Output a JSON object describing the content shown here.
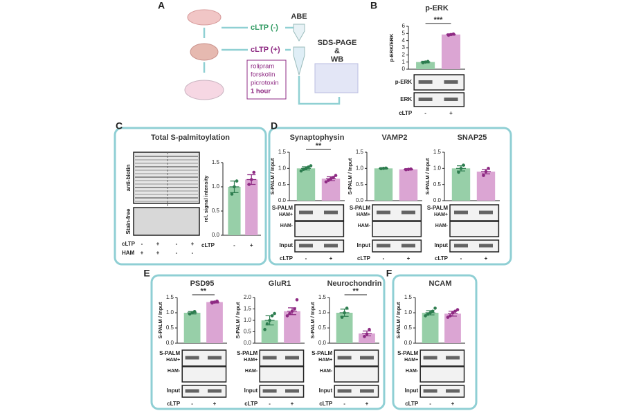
{
  "figure": {
    "panel_a": {
      "letter": "A",
      "minus": "cLTP (-)",
      "plus": "cLTP (+)",
      "abe": "ABE",
      "wb": [
        "SDS-PAGE",
        "&",
        "WB"
      ],
      "treatment": [
        "rolipram",
        "forskolin",
        "picrotoxin",
        "1 hour"
      ]
    },
    "panel_b": {
      "letter": "B"
    },
    "panel_c": {
      "letter": "C",
      "title": "Total S-palmitoylation",
      "blot_labels": [
        "anti-biotin",
        "Stain-free"
      ],
      "rows": [
        {
          "name": "cLTP",
          "signs": [
            "-",
            "+",
            "-",
            "+"
          ]
        },
        {
          "name": "HAM",
          "signs": [
            "+",
            "+",
            "-",
            "-"
          ]
        }
      ]
    },
    "panel_d": {
      "letter": "D"
    },
    "panel_e": {
      "letter": "E"
    },
    "panel_f": {
      "letter": "F"
    }
  },
  "chart_data": [
    {
      "type": "bar",
      "title": "p-ERK",
      "y_label": "p-ERK/ERK",
      "x_label": "cLTP",
      "categories": [
        "-",
        "+"
      ],
      "values": [
        1.0,
        4.85
      ],
      "errors": [
        0.12,
        0.1
      ],
      "points": [
        [
          0.9,
          1.0,
          1.08
        ],
        [
          4.75,
          4.85,
          4.92
        ]
      ],
      "colors": [
        "#97cfa8",
        "#dba5d3"
      ],
      "point_colors": [
        "#2d7d4f",
        "#8e2a83"
      ],
      "ylim": [
        0,
        6
      ],
      "yticks": [
        0,
        1,
        2,
        3,
        4,
        5,
        6
      ],
      "significance": "***",
      "blot_rows": [
        "p-ERK",
        "ERK"
      ]
    },
    {
      "type": "bar",
      "y_label": "rel. signal intensity",
      "x_label": "cLTP",
      "categories": [
        "-",
        "+"
      ],
      "values": [
        1.0,
        1.15
      ],
      "errors": [
        0.12,
        0.1
      ],
      "points": [
        [
          0.85,
          1.0,
          1.12
        ],
        [
          1.05,
          1.15,
          1.3
        ]
      ],
      "colors": [
        "#97cfa8",
        "#dba5d3"
      ],
      "point_colors": [
        "#2d7d4f",
        "#8e2a83"
      ],
      "ylim": [
        0,
        1.5
      ],
      "yticks": [
        {
          "value": 0,
          "label": "0.0"
        },
        0.5,
        {
          "value": 1,
          "label": "1.0"
        },
        1.5
      ]
    },
    {
      "type": "bar",
      "title": "Synaptophysin",
      "y_label": "S-PALM / Input",
      "x_label": "cLTP",
      "categories": [
        "-",
        "+"
      ],
      "values": [
        1.0,
        0.68
      ],
      "errors": [
        0.05,
        0.06
      ],
      "points": [
        [
          0.92,
          0.97,
          1.0,
          1.04,
          1.08
        ],
        [
          0.58,
          0.63,
          0.68,
          0.72,
          0.78
        ]
      ],
      "colors": [
        "#97cfa8",
        "#dba5d3"
      ],
      "point_colors": [
        "#2d7d4f",
        "#8e2a83"
      ],
      "ylim": [
        0,
        1.5
      ],
      "yticks": [
        {
          "value": 0,
          "label": "0.0"
        },
        0.5,
        {
          "value": 1,
          "label": "1.0"
        },
        1.5
      ],
      "significance": "**",
      "blot_rows": [
        "S-PALM",
        "HAM+",
        "HAM-",
        "Input"
      ]
    },
    {
      "type": "bar",
      "title": "VAMP2",
      "y_label": "S-PALM / Input",
      "x_label": "cLTP",
      "categories": [
        "-",
        "+"
      ],
      "values": [
        1.0,
        0.97
      ],
      "errors": [
        0.02,
        0.02
      ],
      "points": [
        [
          0.99,
          1.0,
          1.01
        ],
        [
          0.96,
          0.97,
          0.98
        ]
      ],
      "colors": [
        "#97cfa8",
        "#dba5d3"
      ],
      "point_colors": [
        "#2d7d4f",
        "#8e2a83"
      ],
      "ylim": [
        0,
        1.5
      ],
      "yticks": [
        {
          "value": 0,
          "label": "0.0"
        },
        0.5,
        {
          "value": 1,
          "label": "1.0"
        },
        1.5
      ],
      "blot_rows": [
        "S-PALM",
        "HAM+",
        "HAM-",
        "Input"
      ]
    },
    {
      "type": "bar",
      "title": "SNAP25",
      "y_label": "S-PALM / Input",
      "x_label": "cLTP",
      "categories": [
        "-",
        "+"
      ],
      "values": [
        1.0,
        0.9
      ],
      "errors": [
        0.08,
        0.07
      ],
      "points": [
        [
          0.88,
          1.0,
          1.1
        ],
        [
          0.78,
          0.9,
          1.0
        ]
      ],
      "colors": [
        "#97cfa8",
        "#dba5d3"
      ],
      "point_colors": [
        "#2d7d4f",
        "#8e2a83"
      ],
      "ylim": [
        0,
        1.5
      ],
      "yticks": [
        {
          "value": 0,
          "label": "0.0"
        },
        0.5,
        {
          "value": 1,
          "label": "1.0"
        },
        1.5
      ],
      "blot_rows": [
        "S-PALM",
        "HAM+",
        "HAM-",
        "Input"
      ]
    },
    {
      "type": "bar",
      "title": "PSD95",
      "y_label": "S-PALM / Input",
      "x_label": "cLTP",
      "categories": [
        "-",
        "+"
      ],
      "values": [
        1.0,
        1.35
      ],
      "errors": [
        0.04,
        0.03
      ],
      "points": [
        [
          0.96,
          1.0,
          1.04
        ],
        [
          1.32,
          1.35,
          1.38
        ]
      ],
      "colors": [
        "#97cfa8",
        "#dba5d3"
      ],
      "point_colors": [
        "#2d7d4f",
        "#8e2a83"
      ],
      "ylim": [
        0,
        1.5
      ],
      "yticks": [
        {
          "value": 0,
          "label": "0.0"
        },
        0.5,
        {
          "value": 1,
          "label": "1.0"
        },
        1.5
      ],
      "significance": "**",
      "blot_rows": [
        "S-PALM",
        "HAM+",
        "HAM-",
        "Input"
      ]
    },
    {
      "type": "bar",
      "title": "GluR1",
      "y_label": "S-PALM / Input",
      "x_label": "cLTP",
      "categories": [
        "-",
        "+"
      ],
      "values": [
        1.0,
        1.4
      ],
      "errors": [
        0.2,
        0.15
      ],
      "points": [
        [
          0.6,
          0.85,
          1.0,
          1.2,
          1.3
        ],
        [
          1.2,
          1.3,
          1.4,
          1.5,
          1.9
        ]
      ],
      "colors": [
        "#97cfa8",
        "#dba5d3"
      ],
      "point_colors": [
        "#2d7d4f",
        "#8e2a83"
      ],
      "ylim": [
        0,
        2
      ],
      "yticks": [
        {
          "value": 0,
          "label": "0.0"
        },
        0.5,
        {
          "value": 1,
          "label": "1.0"
        },
        1.5,
        {
          "value": 2,
          "label": "2.0"
        }
      ],
      "blot_rows": [
        "S-PALM",
        "HAM+",
        "HAM-",
        "Input"
      ]
    },
    {
      "type": "bar",
      "title": "Neurochondrin",
      "y_label": "S-PALM / Input",
      "x_label": "cLTP",
      "categories": [
        "-",
        "+"
      ],
      "values": [
        1.0,
        0.32
      ],
      "errors": [
        0.12,
        0.08
      ],
      "points": [
        [
          0.85,
          1.0,
          1.15
        ],
        [
          0.22,
          0.3,
          0.45
        ]
      ],
      "colors": [
        "#97cfa8",
        "#dba5d3"
      ],
      "point_colors": [
        "#2d7d4f",
        "#8e2a83"
      ],
      "ylim": [
        0,
        1.5
      ],
      "yticks": [
        {
          "value": 0,
          "label": "0.0"
        },
        0.5,
        {
          "value": 1,
          "label": "1.0"
        },
        1.5
      ],
      "significance": "**",
      "blot_rows": [
        "S-PALM",
        "HAM+",
        "HAM-",
        "Input"
      ]
    },
    {
      "type": "bar",
      "title": "NCAM",
      "y_label": "S-PALM / Input",
      "x_label": "cLTP",
      "categories": [
        "-",
        "+"
      ],
      "values": [
        1.0,
        0.97
      ],
      "errors": [
        0.07,
        0.08
      ],
      "points": [
        [
          0.9,
          0.95,
          1.0,
          1.05,
          1.15
        ],
        [
          0.85,
          0.9,
          1.0,
          1.05,
          1.1
        ]
      ],
      "colors": [
        "#97cfa8",
        "#dba5d3"
      ],
      "point_colors": [
        "#2d7d4f",
        "#8e2a83"
      ],
      "ylim": [
        0,
        1.5
      ],
      "yticks": [
        {
          "value": 0,
          "label": "0.0"
        },
        0.5,
        {
          "value": 1,
          "label": "1.0"
        },
        1.5
      ],
      "blot_rows": [
        "S-PALM",
        "HAM+",
        "HAM-",
        "Input"
      ]
    }
  ]
}
